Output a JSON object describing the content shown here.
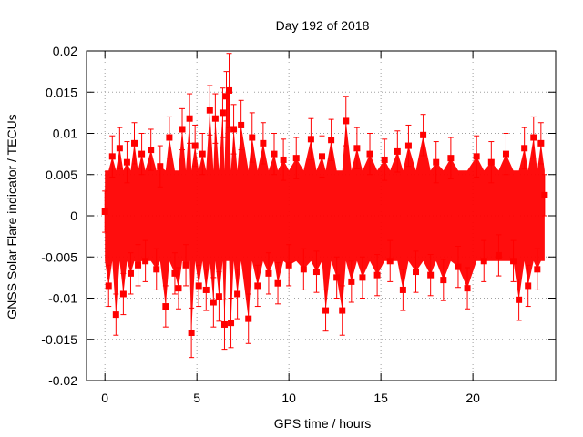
{
  "chart_data": {
    "type": "scatter",
    "title": "Day 192 of 2018",
    "xlabel": "GPS time / hours",
    "ylabel": "GNSS Solar Flare indicator / TECUs",
    "xlim": [
      -1,
      24.5
    ],
    "ylim": [
      -0.02,
      0.02
    ],
    "xticks": [
      0,
      5,
      10,
      15,
      20
    ],
    "xtick_labels": [
      "0",
      "5",
      "10",
      "15",
      "20"
    ],
    "yticks": [
      -0.02,
      -0.015,
      -0.01,
      -0.005,
      0,
      0.005,
      0.01,
      0.015,
      0.02
    ],
    "ytick_labels": [
      "-0.02",
      "-0.015",
      "-0.01",
      "-0.005",
      "0",
      "0.005",
      "0.01",
      "0.015",
      "0.02"
    ],
    "grid": true,
    "series_color": "#ff0000",
    "series": [
      {
        "name": "solar flare indicator",
        "marker": "square",
        "error_bars": true,
        "points": [
          {
            "x": 0.0,
            "y": 0.0005,
            "err": 0.0025
          },
          {
            "x": 0.2,
            "y": -0.0085,
            "err": 0.0025
          },
          {
            "x": 0.4,
            "y": 0.0072,
            "err": 0.0025
          },
          {
            "x": 0.6,
            "y": -0.012,
            "err": 0.0025
          },
          {
            "x": 0.8,
            "y": 0.0082,
            "err": 0.0025
          },
          {
            "x": 1.0,
            "y": -0.0095,
            "err": 0.0025
          },
          {
            "x": 1.2,
            "y": 0.0065,
            "err": 0.0025
          },
          {
            "x": 1.4,
            "y": -0.007,
            "err": 0.0025
          },
          {
            "x": 1.6,
            "y": 0.0088,
            "err": 0.0025
          },
          {
            "x": 1.8,
            "y": -0.006,
            "err": 0.0025
          },
          {
            "x": 2.0,
            "y": 0.0075,
            "err": 0.0025
          },
          {
            "x": 2.2,
            "y": -0.0055,
            "err": 0.0025
          },
          {
            "x": 2.5,
            "y": 0.008,
            "err": 0.0025
          },
          {
            "x": 2.8,
            "y": -0.0065,
            "err": 0.0025
          },
          {
            "x": 3.0,
            "y": 0.006,
            "err": 0.0025
          },
          {
            "x": 3.3,
            "y": -0.011,
            "err": 0.0025
          },
          {
            "x": 3.5,
            "y": 0.0095,
            "err": 0.0025
          },
          {
            "x": 3.8,
            "y": -0.007,
            "err": 0.0025
          },
          {
            "x": 4.0,
            "y": -0.0088,
            "err": 0.0025
          },
          {
            "x": 4.2,
            "y": 0.0105,
            "err": 0.0025
          },
          {
            "x": 4.4,
            "y": -0.006,
            "err": 0.0025
          },
          {
            "x": 4.6,
            "y": 0.0118,
            "err": 0.003
          },
          {
            "x": 4.7,
            "y": -0.0142,
            "err": 0.003
          },
          {
            "x": 4.9,
            "y": 0.0085,
            "err": 0.0025
          },
          {
            "x": 5.1,
            "y": -0.0085,
            "err": 0.0025
          },
          {
            "x": 5.3,
            "y": 0.0075,
            "err": 0.0025
          },
          {
            "x": 5.5,
            "y": -0.009,
            "err": 0.0025
          },
          {
            "x": 5.7,
            "y": 0.0128,
            "err": 0.003
          },
          {
            "x": 5.9,
            "y": -0.0105,
            "err": 0.003
          },
          {
            "x": 6.0,
            "y": 0.0118,
            "err": 0.003
          },
          {
            "x": 6.2,
            "y": -0.0098,
            "err": 0.003
          },
          {
            "x": 6.4,
            "y": 0.0125,
            "err": 0.003
          },
          {
            "x": 6.5,
            "y": -0.0132,
            "err": 0.003
          },
          {
            "x": 6.6,
            "y": 0.0145,
            "err": 0.003
          },
          {
            "x": 6.75,
            "y": 0.0152,
            "err": 0.0045
          },
          {
            "x": 6.85,
            "y": -0.013,
            "err": 0.003
          },
          {
            "x": 7.0,
            "y": 0.0105,
            "err": 0.003
          },
          {
            "x": 7.2,
            "y": -0.0095,
            "err": 0.003
          },
          {
            "x": 7.4,
            "y": 0.011,
            "err": 0.003
          },
          {
            "x": 7.8,
            "y": -0.0125,
            "err": 0.003
          },
          {
            "x": 8.0,
            "y": 0.0095,
            "err": 0.003
          },
          {
            "x": 8.3,
            "y": -0.0085,
            "err": 0.0025
          },
          {
            "x": 8.6,
            "y": 0.0088,
            "err": 0.0025
          },
          {
            "x": 8.9,
            "y": -0.007,
            "err": 0.0025
          },
          {
            "x": 9.2,
            "y": 0.0075,
            "err": 0.0025
          },
          {
            "x": 9.4,
            "y": -0.0082,
            "err": 0.0025
          },
          {
            "x": 9.7,
            "y": 0.0068,
            "err": 0.0025
          },
          {
            "x": 10.0,
            "y": -0.006,
            "err": 0.0025
          },
          {
            "x": 10.4,
            "y": 0.007,
            "err": 0.0025
          },
          {
            "x": 10.8,
            "y": -0.0065,
            "err": 0.0025
          },
          {
            "x": 11.2,
            "y": 0.0093,
            "err": 0.0025
          },
          {
            "x": 11.5,
            "y": -0.0068,
            "err": 0.0025
          },
          {
            "x": 11.8,
            "y": 0.0072,
            "err": 0.0025
          },
          {
            "x": 12.0,
            "y": -0.0115,
            "err": 0.0025
          },
          {
            "x": 12.3,
            "y": 0.0092,
            "err": 0.0025
          },
          {
            "x": 12.6,
            "y": -0.0075,
            "err": 0.0025
          },
          {
            "x": 12.9,
            "y": -0.0115,
            "err": 0.003
          },
          {
            "x": 13.1,
            "y": 0.0115,
            "err": 0.003
          },
          {
            "x": 13.4,
            "y": -0.008,
            "err": 0.0025
          },
          {
            "x": 13.7,
            "y": 0.0082,
            "err": 0.0025
          },
          {
            "x": 14.0,
            "y": -0.0075,
            "err": 0.0025
          },
          {
            "x": 14.4,
            "y": 0.0075,
            "err": 0.0025
          },
          {
            "x": 14.8,
            "y": -0.0072,
            "err": 0.0025
          },
          {
            "x": 15.2,
            "y": 0.0068,
            "err": 0.0025
          },
          {
            "x": 15.5,
            "y": -0.0055,
            "err": 0.0025
          },
          {
            "x": 15.9,
            "y": 0.0078,
            "err": 0.0025
          },
          {
            "x": 16.2,
            "y": -0.009,
            "err": 0.0025
          },
          {
            "x": 16.5,
            "y": 0.0085,
            "err": 0.0025
          },
          {
            "x": 16.9,
            "y": -0.0068,
            "err": 0.0025
          },
          {
            "x": 17.3,
            "y": 0.0098,
            "err": 0.0025
          },
          {
            "x": 17.7,
            "y": -0.0072,
            "err": 0.0025
          },
          {
            "x": 18.0,
            "y": 0.0065,
            "err": 0.0025
          },
          {
            "x": 18.4,
            "y": -0.0078,
            "err": 0.0025
          },
          {
            "x": 18.8,
            "y": 0.007,
            "err": 0.0025
          },
          {
            "x": 19.2,
            "y": -0.0062,
            "err": 0.0025
          },
          {
            "x": 19.7,
            "y": -0.0088,
            "err": 0.0025
          },
          {
            "x": 20.2,
            "y": 0.0072,
            "err": 0.0025
          },
          {
            "x": 20.6,
            "y": -0.0055,
            "err": 0.0025
          },
          {
            "x": 21.0,
            "y": 0.0065,
            "err": 0.0025
          },
          {
            "x": 21.4,
            "y": -0.0048,
            "err": 0.0025
          },
          {
            "x": 21.8,
            "y": 0.0075,
            "err": 0.0025
          },
          {
            "x": 22.2,
            "y": -0.0055,
            "err": 0.0025
          },
          {
            "x": 22.5,
            "y": -0.0102,
            "err": 0.0025
          },
          {
            "x": 22.8,
            "y": 0.0082,
            "err": 0.0025
          },
          {
            "x": 23.0,
            "y": -0.0085,
            "err": 0.0025
          },
          {
            "x": 23.3,
            "y": 0.0095,
            "err": 0.0025
          },
          {
            "x": 23.5,
            "y": -0.0065,
            "err": 0.0025
          },
          {
            "x": 23.7,
            "y": 0.0088,
            "err": 0.0025
          },
          {
            "x": 23.9,
            "y": 0.0025,
            "err": 0.0025
          }
        ]
      }
    ]
  }
}
